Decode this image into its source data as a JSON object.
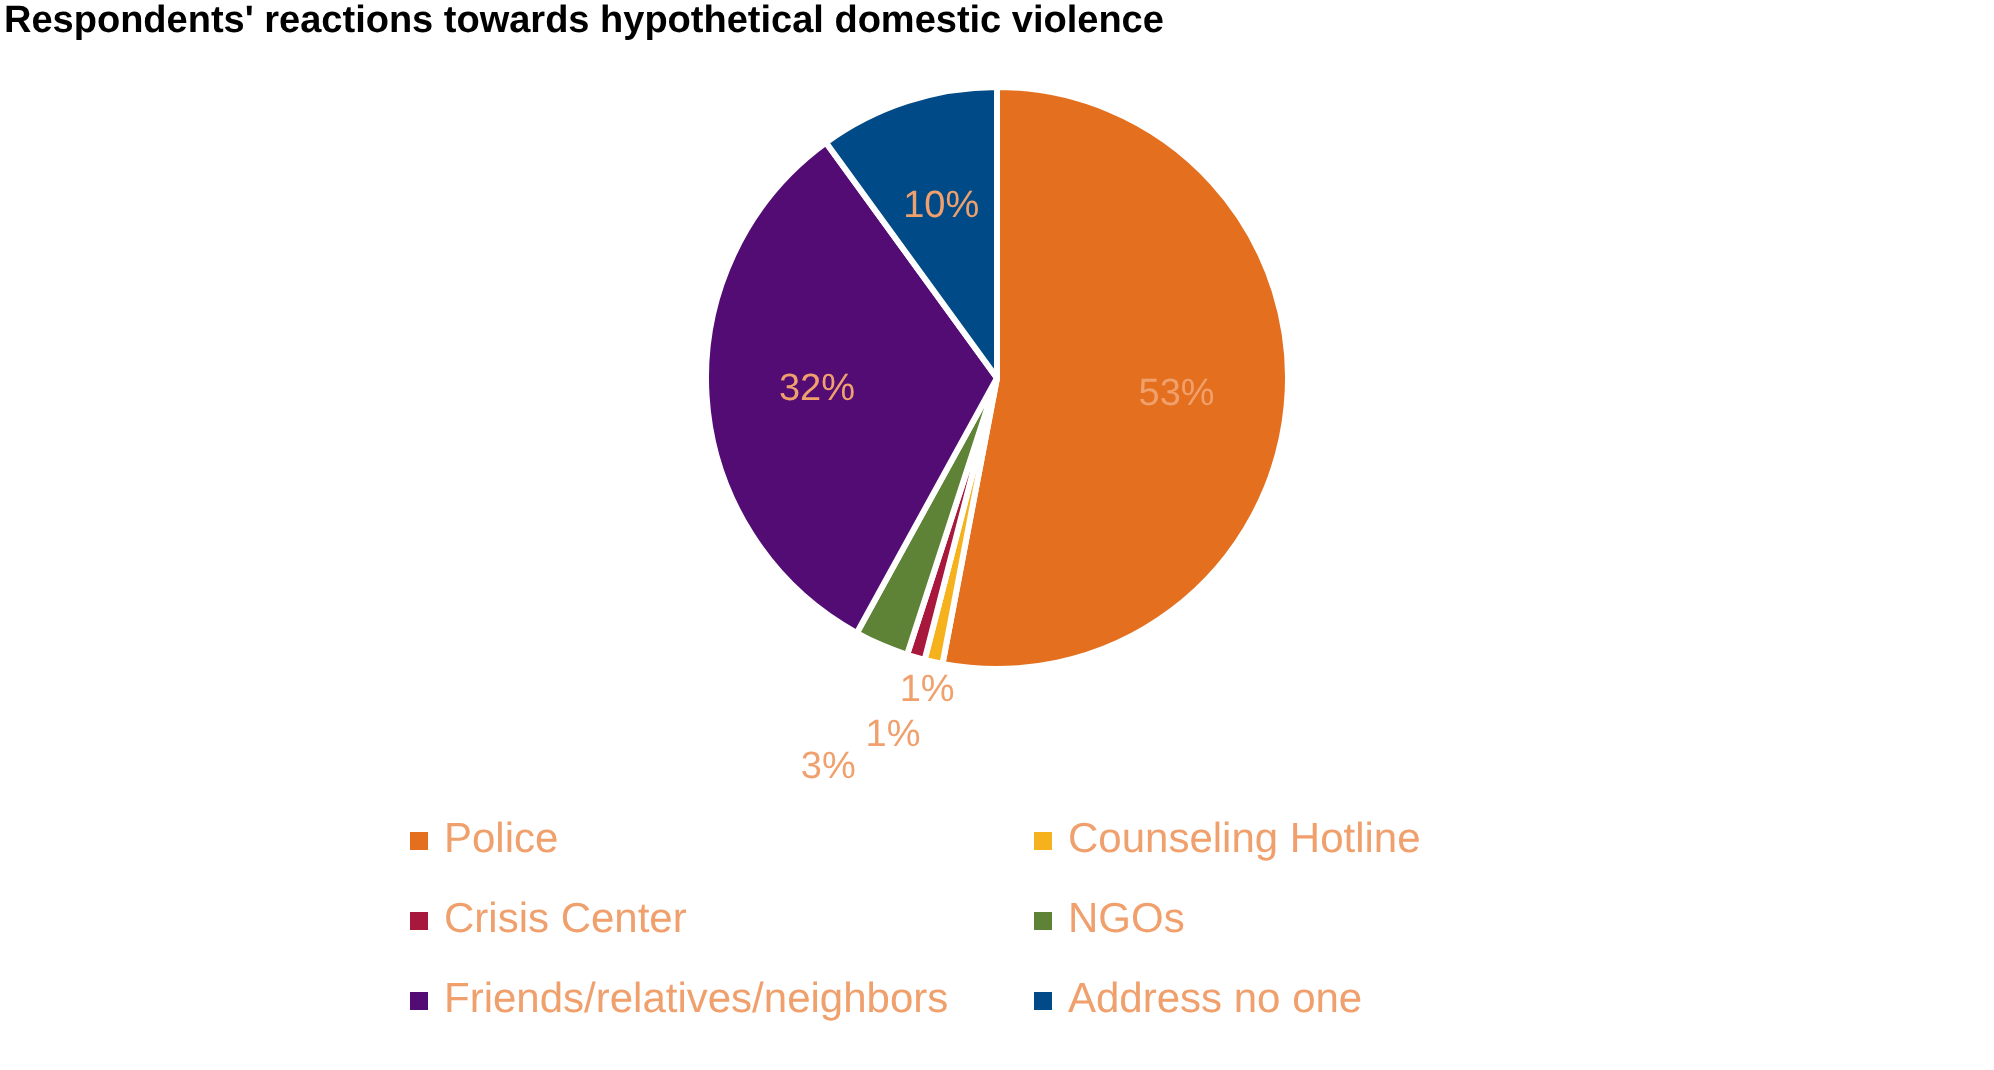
{
  "chart_data": {
    "type": "pie",
    "title": "Respondents' reactions towards hypothetical domestic violence",
    "categories": [
      "Police",
      "Counseling Hotline",
      "Crisis Center",
      "NGOs",
      "Friends/relatives/neighbors",
      "Address no one"
    ],
    "values": [
      53,
      1,
      1,
      3,
      32,
      10
    ],
    "colors": [
      "#e4701f",
      "#f5b21c",
      "#a8183c",
      "#5e8236",
      "#520c73",
      "#004b87"
    ],
    "value_labels": [
      "53%",
      "1%",
      "1%",
      "3%",
      "32%",
      "10%"
    ],
    "legend": "bottom"
  }
}
